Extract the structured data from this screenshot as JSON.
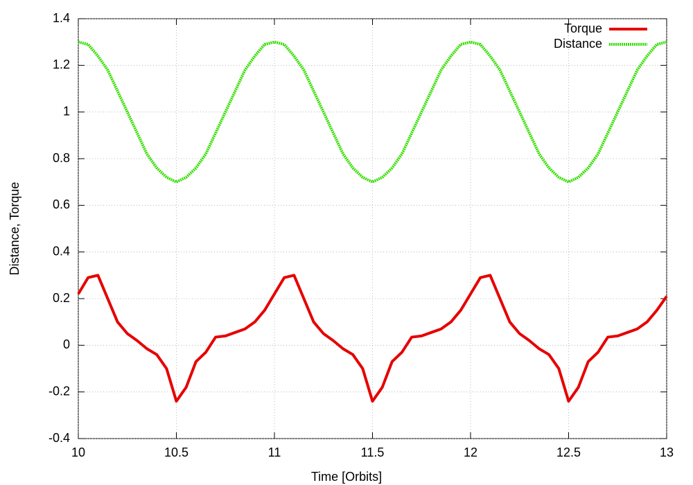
{
  "chart_data": {
    "type": "line",
    "xlabel": "Time [Orbits]",
    "ylabel": "Distance, Torque",
    "x": [
      10,
      10.05,
      10.1,
      10.15,
      10.2,
      10.25,
      10.3,
      10.35,
      10.4,
      10.45,
      10.5,
      10.55,
      10.6,
      10.65,
      10.7,
      10.75,
      10.8,
      10.85,
      10.9,
      10.95,
      11,
      11.05,
      11.1,
      11.15,
      11.2,
      11.25,
      11.3,
      11.35,
      11.4,
      11.45,
      11.5,
      11.55,
      11.6,
      11.65,
      11.7,
      11.75,
      11.8,
      11.85,
      11.9,
      11.95,
      12,
      12.05,
      12.1,
      12.15,
      12.2,
      12.25,
      12.3,
      12.35,
      12.4,
      12.45,
      12.5,
      12.55,
      12.6,
      12.65,
      12.7,
      12.75,
      12.8,
      12.85,
      12.9,
      12.95,
      13
    ],
    "series": [
      {
        "name": "Torque",
        "color": "#e60000",
        "dashed": false,
        "values": [
          0.22,
          0.29,
          0.3,
          0.2,
          0.1,
          0.05,
          0.02,
          -0.015,
          -0.04,
          -0.1,
          -0.24,
          -0.18,
          -0.07,
          -0.03,
          0.035,
          0.04,
          0.055,
          0.07,
          0.1,
          0.15,
          0.22,
          0.29,
          0.3,
          0.2,
          0.1,
          0.05,
          0.02,
          -0.015,
          -0.04,
          -0.1,
          -0.24,
          -0.18,
          -0.07,
          -0.03,
          0.035,
          0.04,
          0.055,
          0.07,
          0.1,
          0.15,
          0.22,
          0.29,
          0.3,
          0.2,
          0.1,
          0.05,
          0.02,
          -0.015,
          -0.04,
          -0.1,
          -0.24,
          -0.18,
          -0.07,
          -0.03,
          0.035,
          0.04,
          0.055,
          0.07,
          0.1,
          0.15,
          0.21
        ]
      },
      {
        "name": "Distance",
        "color": "#33dd00",
        "dashed": true,
        "values": [
          1.3,
          1.29,
          1.24,
          1.18,
          1.09,
          1,
          0.91,
          0.82,
          0.76,
          0.72,
          0.7,
          0.72,
          0.76,
          0.82,
          0.91,
          1,
          1.09,
          1.18,
          1.24,
          1.29,
          1.3,
          1.29,
          1.24,
          1.18,
          1.09,
          1,
          0.91,
          0.82,
          0.76,
          0.72,
          0.7,
          0.72,
          0.76,
          0.82,
          0.91,
          1,
          1.09,
          1.18,
          1.24,
          1.29,
          1.3,
          1.29,
          1.24,
          1.18,
          1.09,
          1,
          0.91,
          0.82,
          0.76,
          0.72,
          0.7,
          0.72,
          0.76,
          0.82,
          0.91,
          1,
          1.09,
          1.18,
          1.24,
          1.29,
          1.3
        ]
      }
    ],
    "xlim": [
      10,
      13
    ],
    "xticks": [
      10,
      10.5,
      11,
      11.5,
      12,
      12.5,
      13
    ],
    "ylim": [
      -0.4,
      1.4
    ],
    "yticks": [
      -0.4,
      -0.2,
      0,
      0.2,
      0.4,
      0.6,
      0.8,
      1,
      1.2,
      1.4
    ],
    "grid": true,
    "legend": "top-right"
  }
}
